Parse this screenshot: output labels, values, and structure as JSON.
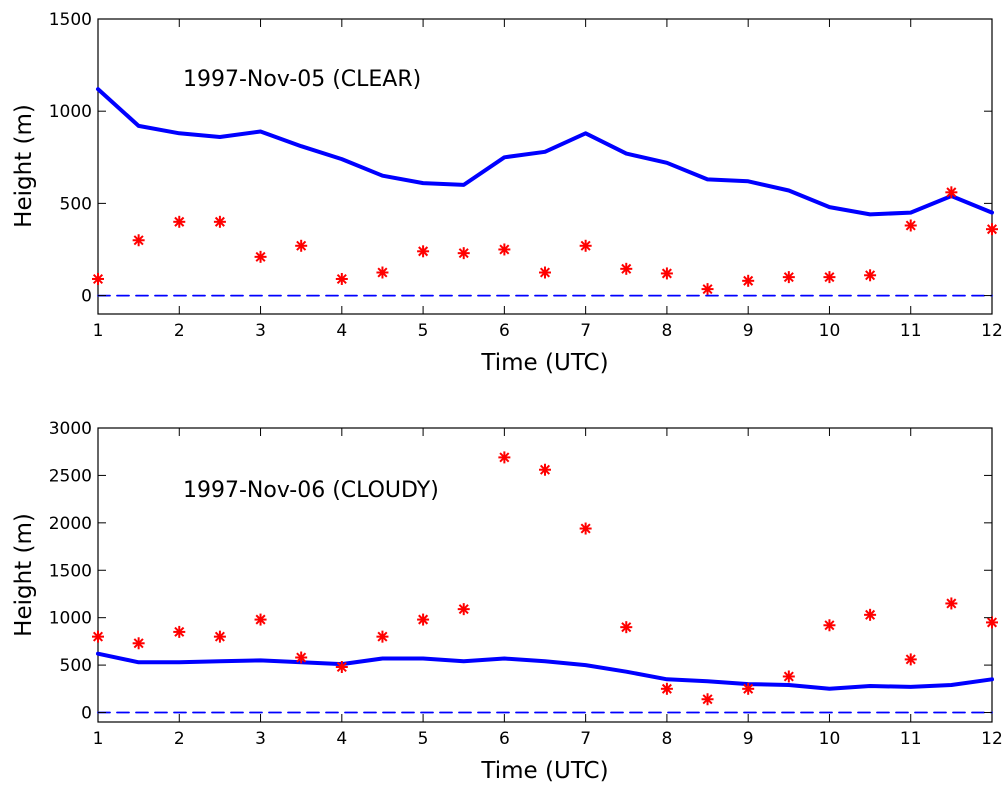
{
  "chart_data": [
    {
      "type": "line",
      "title": "",
      "annotation": "1997-Nov-05 (CLEAR)",
      "xlabel": "Time (UTC)",
      "ylabel": "Height (m)",
      "xlim": [
        1,
        12
      ],
      "ylim": [
        -100,
        1500
      ],
      "xticks": [
        1,
        2,
        3,
        4,
        5,
        6,
        7,
        8,
        9,
        10,
        11,
        12
      ],
      "yticks": [
        0,
        500,
        1000,
        1500
      ],
      "grid": false,
      "series": [
        {
          "style": "solid-line",
          "color": "#0000ff",
          "points": [
            [
              1,
              1120
            ],
            [
              1.5,
              920
            ],
            [
              2,
              880
            ],
            [
              2.5,
              860
            ],
            [
              3,
              890
            ],
            [
              3.5,
              810
            ],
            [
              4,
              740
            ],
            [
              4.5,
              650
            ],
            [
              5,
              610
            ],
            [
              5.5,
              600
            ],
            [
              6,
              750
            ],
            [
              6.5,
              780
            ],
            [
              7,
              880
            ],
            [
              7.5,
              770
            ],
            [
              8,
              720
            ],
            [
              8.5,
              630
            ],
            [
              9,
              620
            ],
            [
              9.5,
              570
            ],
            [
              10,
              480
            ],
            [
              10.5,
              440
            ],
            [
              11,
              450
            ],
            [
              11.5,
              540
            ],
            [
              12,
              450
            ]
          ]
        },
        {
          "style": "markers",
          "marker": "asterisk",
          "color": "#ff0000",
          "points": [
            [
              1,
              90
            ],
            [
              1.5,
              300
            ],
            [
              2,
              400
            ],
            [
              2.5,
              400
            ],
            [
              3,
              210
            ],
            [
              3.5,
              270
            ],
            [
              4,
              90
            ],
            [
              4.5,
              125
            ],
            [
              5,
              240
            ],
            [
              5.5,
              230
            ],
            [
              6,
              250
            ],
            [
              6.5,
              125
            ],
            [
              7,
              270
            ],
            [
              7.5,
              145
            ],
            [
              8,
              120
            ],
            [
              8.5,
              35
            ],
            [
              9,
              80
            ],
            [
              9.5,
              100
            ],
            [
              10,
              100
            ],
            [
              10.5,
              110
            ],
            [
              11,
              380
            ],
            [
              11.5,
              560
            ],
            [
              12,
              360
            ]
          ]
        },
        {
          "style": "dashed-line",
          "color": "#0000ff",
          "points": [
            [
              1,
              0
            ],
            [
              12,
              0
            ]
          ]
        }
      ]
    },
    {
      "type": "line",
      "title": "",
      "annotation": "1997-Nov-06 (CLOUDY)",
      "xlabel": "Time (UTC)",
      "ylabel": "Height (m)",
      "xlim": [
        1,
        12
      ],
      "ylim": [
        -100,
        3000
      ],
      "xticks": [
        1,
        2,
        3,
        4,
        5,
        6,
        7,
        8,
        9,
        10,
        11,
        12
      ],
      "yticks": [
        0,
        500,
        1000,
        1500,
        2000,
        2500,
        3000
      ],
      "grid": false,
      "series": [
        {
          "style": "solid-line",
          "color": "#0000ff",
          "points": [
            [
              1,
              620
            ],
            [
              1.5,
              530
            ],
            [
              2,
              530
            ],
            [
              2.5,
              540
            ],
            [
              3,
              550
            ],
            [
              3.5,
              530
            ],
            [
              4,
              510
            ],
            [
              4.5,
              570
            ],
            [
              5,
              570
            ],
            [
              5.5,
              540
            ],
            [
              6,
              570
            ],
            [
              6.5,
              540
            ],
            [
              7,
              500
            ],
            [
              7.5,
              430
            ],
            [
              8,
              350
            ],
            [
              8.5,
              330
            ],
            [
              9,
              300
            ],
            [
              9.5,
              290
            ],
            [
              10,
              250
            ],
            [
              10.5,
              280
            ],
            [
              11,
              270
            ],
            [
              11.5,
              290
            ],
            [
              12,
              350
            ]
          ]
        },
        {
          "style": "markers",
          "marker": "asterisk",
          "color": "#ff0000",
          "points": [
            [
              1,
              800
            ],
            [
              1.5,
              730
            ],
            [
              2,
              850
            ],
            [
              2.5,
              800
            ],
            [
              3,
              980
            ],
            [
              3.5,
              580
            ],
            [
              4,
              480
            ],
            [
              4.5,
              800
            ],
            [
              5,
              980
            ],
            [
              5.5,
              1090
            ],
            [
              6,
              2690
            ],
            [
              6.5,
              2560
            ],
            [
              7,
              1940
            ],
            [
              7.5,
              900
            ],
            [
              8,
              250
            ],
            [
              8.5,
              140
            ],
            [
              9,
              250
            ],
            [
              9.5,
              380
            ],
            [
              10,
              920
            ],
            [
              10.5,
              1030
            ],
            [
              11,
              560
            ],
            [
              11.5,
              1150
            ],
            [
              12,
              950
            ]
          ]
        },
        {
          "style": "dashed-line",
          "color": "#0000ff",
          "points": [
            [
              1,
              0
            ],
            [
              12,
              0
            ]
          ]
        }
      ]
    }
  ]
}
